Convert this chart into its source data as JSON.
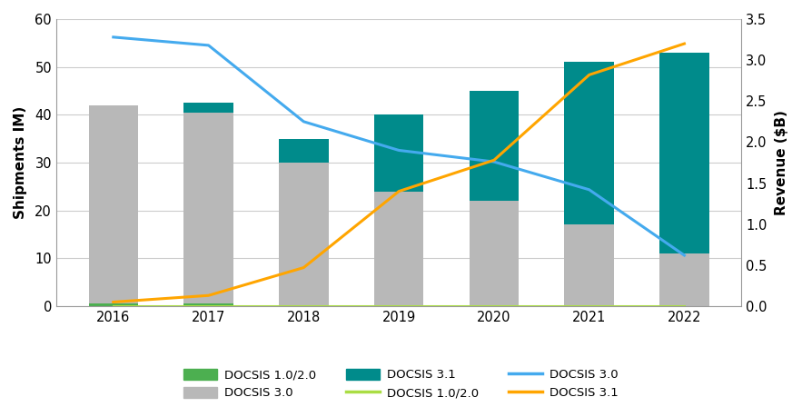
{
  "years": [
    2016,
    2017,
    2018,
    2019,
    2020,
    2021,
    2022
  ],
  "bar_docsis10_20": [
    0.5,
    0.5,
    0,
    0,
    0,
    0,
    0
  ],
  "bar_docsis30": [
    41.5,
    40.0,
    30.0,
    24.0,
    22.0,
    17.0,
    11.0
  ],
  "bar_docsis31": [
    0,
    2.0,
    5.0,
    16.0,
    23.0,
    34.0,
    42.0
  ],
  "line_docsis10_20": [
    0.0,
    0.0,
    0.0,
    0.0,
    0.0,
    0.0,
    0.0
  ],
  "line_docsis30": [
    3.28,
    3.18,
    2.25,
    1.9,
    1.76,
    1.42,
    0.62
  ],
  "line_docsis31": [
    0.05,
    0.13,
    0.47,
    1.4,
    1.78,
    2.82,
    3.2
  ],
  "bar_docsis10_20_color": "#4CAF50",
  "bar_docsis30_color": "#B8B8B8",
  "bar_docsis31_color": "#008B8B",
  "line_docsis10_20_color": "#AADD44",
  "line_docsis30_color": "#44AAEE",
  "line_docsis31_color": "#FFA500",
  "ylabel_left": "Shipments IM)",
  "ylabel_right": "Revenue ($B)",
  "ylim_left": [
    0,
    60
  ],
  "ylim_right": [
    0.0,
    3.5
  ],
  "yticks_left": [
    0,
    10,
    20,
    30,
    40,
    50,
    60
  ],
  "yticks_right": [
    0.0,
    0.5,
    1.0,
    1.5,
    2.0,
    2.5,
    3.0,
    3.5
  ],
  "background_color": "#FFFFFF",
  "grid_color": "#CCCCCC",
  "bar_width": 0.52,
  "legend_fontsize": 9.5
}
